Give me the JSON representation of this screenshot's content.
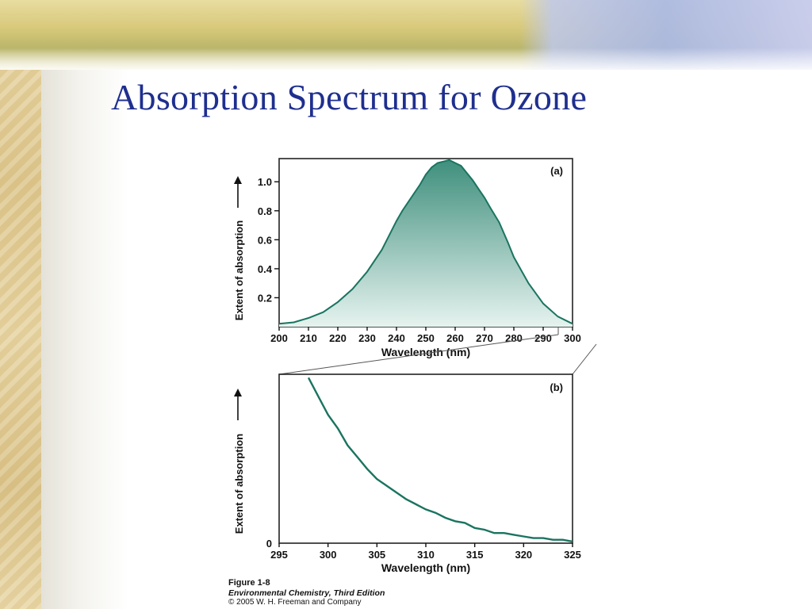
{
  "slide": {
    "title": "Absorption Spectrum for Ozone"
  },
  "colors": {
    "title": "#1f2f8f",
    "curve": "#1a7460",
    "fill_top": "#3f8f7d",
    "fill_bottom": "#e6f3ef"
  },
  "figure": {
    "caption_number": "Figure 1-8",
    "caption_book": "Environmental Chemistry, Third Edition",
    "caption_copyright": "© 2005 W. H. Freeman and Company"
  },
  "chart_data": [
    {
      "type": "area",
      "panel_label": "(a)",
      "xlabel": "Wavelength (nm)",
      "ylabel": "Extent of absorption",
      "xlim": [
        200,
        300
      ],
      "ylim": [
        0,
        1.16
      ],
      "x_ticks": [
        "200",
        "210",
        "220",
        "230",
        "240",
        "250",
        "260",
        "270",
        "280",
        "290",
        "300"
      ],
      "y_ticks": [
        "0.2",
        "0.4",
        "0.6",
        "0.8",
        "1.0"
      ],
      "series": [
        {
          "x": [
            200,
            205,
            210,
            215,
            220,
            225,
            230,
            235,
            238,
            240,
            242,
            245,
            248,
            250,
            252,
            254,
            256,
            258,
            260,
            262,
            264,
            266,
            268,
            270,
            272,
            275,
            278,
            280,
            285,
            290,
            295,
            300
          ],
          "values": [
            0.02,
            0.03,
            0.06,
            0.1,
            0.17,
            0.26,
            0.38,
            0.53,
            0.65,
            0.73,
            0.8,
            0.89,
            0.98,
            1.05,
            1.1,
            1.13,
            1.14,
            1.15,
            1.13,
            1.11,
            1.06,
            1.01,
            0.95,
            0.89,
            0.82,
            0.72,
            0.58,
            0.48,
            0.3,
            0.16,
            0.07,
            0.02
          ]
        }
      ]
    },
    {
      "type": "line",
      "panel_label": "(b)",
      "xlabel": "Wavelength (nm)",
      "ylabel": "Extent of absorption",
      "xlim": [
        295,
        325
      ],
      "ylim": [
        0,
        1
      ],
      "x_ticks": [
        "295",
        "300",
        "305",
        "310",
        "315",
        "320",
        "325"
      ],
      "y_ticks": [
        "0"
      ],
      "series": [
        {
          "x": [
            298,
            299,
            300,
            301,
            302,
            303,
            304,
            305,
            306,
            307,
            308,
            309,
            310,
            311,
            312,
            313,
            314,
            315,
            316,
            317,
            318,
            319,
            320,
            321,
            322,
            323,
            324,
            325
          ],
          "values": [
            0.98,
            0.87,
            0.76,
            0.68,
            0.58,
            0.51,
            0.44,
            0.38,
            0.34,
            0.3,
            0.26,
            0.23,
            0.2,
            0.18,
            0.15,
            0.13,
            0.12,
            0.09,
            0.08,
            0.06,
            0.06,
            0.05,
            0.04,
            0.03,
            0.03,
            0.02,
            0.02,
            0.01
          ]
        }
      ]
    }
  ]
}
